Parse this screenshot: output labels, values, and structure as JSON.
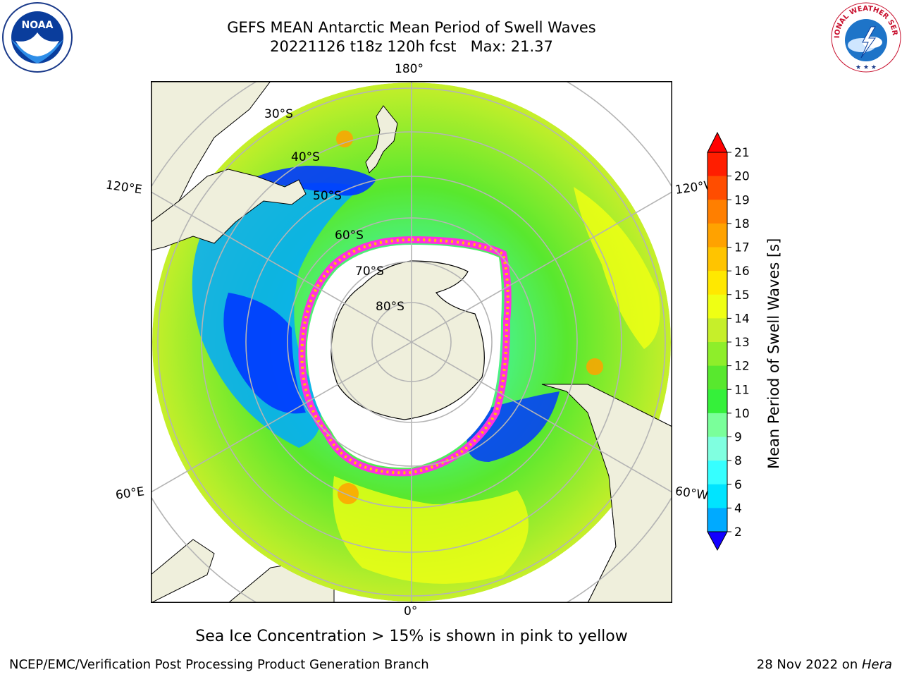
{
  "title": {
    "line1": "GEFS MEAN Antarctic Mean Period of Swell Waves",
    "line2": "20221126 t18z 120h fcst   Max: 21.37"
  },
  "map": {
    "projection": "south-polar-stereographic",
    "longitude_labels": {
      "top": "180°",
      "bottom": "0°",
      "upper_left": "120°E",
      "upper_right": "120°W",
      "lower_left": "60°E",
      "lower_right": "60°W"
    },
    "latitude_labels": [
      "30°S",
      "40°S",
      "50°S",
      "60°S",
      "70°S",
      "80°S"
    ],
    "colors": {
      "land": "#efefdc",
      "sea_ice": "#ffffff",
      "grid": "#b4b4b4",
      "coast": "#000000"
    }
  },
  "colorbar": {
    "label": "Mean Period of Swell Waves [s]",
    "ticks": [
      "2",
      "4",
      "6",
      "8",
      "9",
      "10",
      "11",
      "12",
      "13",
      "14",
      "15",
      "16",
      "17",
      "18",
      "19",
      "20",
      "21"
    ],
    "colors": [
      "#0038ff",
      "#00aaff",
      "#00e4ff",
      "#36ffff",
      "#80ffe0",
      "#7aff9a",
      "#35f03a",
      "#58e82e",
      "#8eee2a",
      "#c6ef2a",
      "#efff14",
      "#ffe800",
      "#ffc400",
      "#ffa200",
      "#ff7f00",
      "#ff4d00",
      "#ff1e00"
    ],
    "min_arrow_color": "#1200ff",
    "max_arrow_color": "#ff0000"
  },
  "ice_note": "Sea Ice Concentration > 15% is shown in pink to yellow",
  "footer": {
    "left": "NCEP/EMC/Verification Post Processing Product Generation Branch",
    "date": "28 Nov 2022 on ",
    "host": "Hera"
  },
  "logos": {
    "noaa_text": "NOAA",
    "nws_text": "NATIONAL WEATHER SERVICE"
  }
}
